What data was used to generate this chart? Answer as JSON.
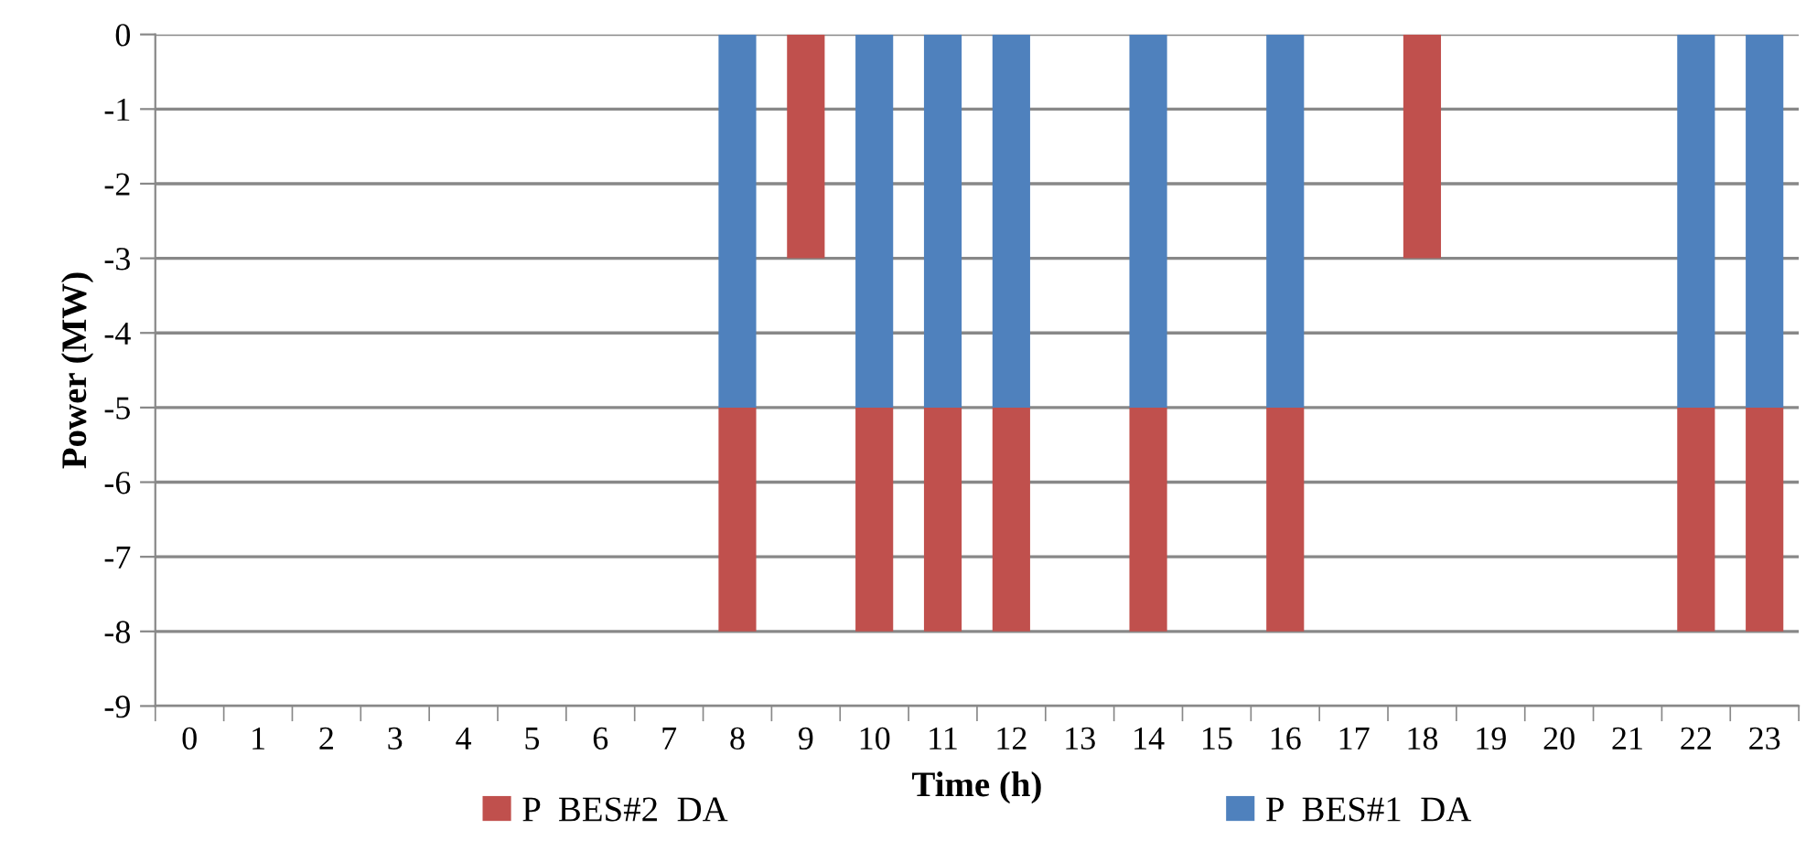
{
  "chart_data": {
    "type": "bar",
    "stacked": true,
    "xlabel": "Time (h)",
    "ylabel": "Power (MW)",
    "categories": [
      "0",
      "1",
      "2",
      "3",
      "4",
      "5",
      "6",
      "7",
      "8",
      "9",
      "10",
      "11",
      "12",
      "13",
      "14",
      "15",
      "16",
      "17",
      "18",
      "19",
      "20",
      "21",
      "22",
      "23"
    ],
    "series": [
      {
        "name": "P  BES#1  DA",
        "color": "#4f81bd",
        "values": [
          null,
          null,
          null,
          null,
          null,
          null,
          null,
          null,
          -5,
          null,
          -5,
          -5,
          -5,
          null,
          -5,
          null,
          -5,
          null,
          null,
          null,
          null,
          null,
          -5,
          -5
        ]
      },
      {
        "name": "P  BES#2  DA",
        "color": "#c0504d",
        "values": [
          null,
          null,
          null,
          null,
          null,
          null,
          null,
          null,
          -3,
          -3,
          -3,
          -3,
          -3,
          null,
          -3,
          null,
          -3,
          null,
          -3,
          null,
          null,
          null,
          -3,
          -3
        ]
      }
    ],
    "ylim": [
      -9,
      0
    ],
    "yticks": [
      0,
      -1,
      -2,
      -3,
      -4,
      -5,
      -6,
      -7,
      -8,
      -9
    ],
    "grid": "y",
    "legend": "bottom"
  }
}
